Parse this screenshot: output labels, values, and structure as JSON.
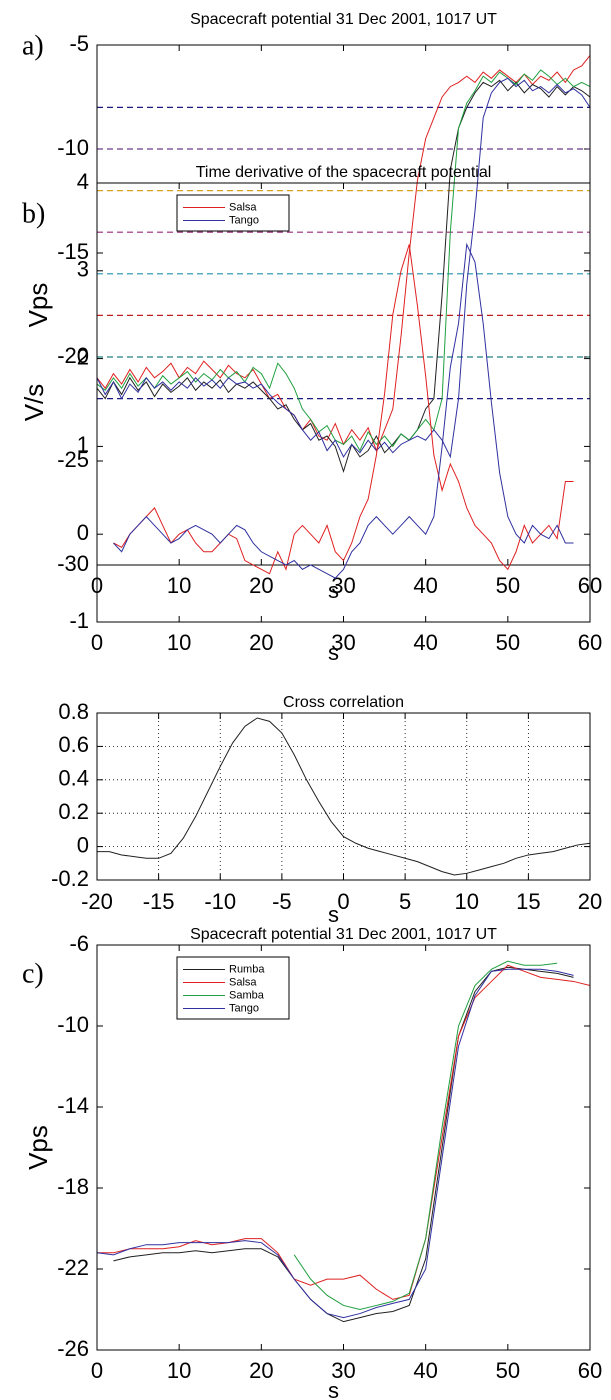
{
  "chart_data": [
    {
      "type": "line",
      "panel_label": "a)",
      "title": "Spacecraft potential 31 Dec 2001, 1017 UT",
      "xlabel": "s",
      "ylabel": "Vps",
      "xlim": [
        0,
        60
      ],
      "ylim": [
        -30,
        -5
      ],
      "xticks": [
        0,
        10,
        20,
        30,
        40,
        50,
        60
      ],
      "yticks": [
        -30,
        -25,
        -20,
        -15,
        -10,
        -5
      ],
      "grid": false,
      "x": [
        0,
        1,
        2,
        3,
        4,
        5,
        6,
        7,
        8,
        9,
        10,
        11,
        12,
        13,
        14,
        15,
        16,
        17,
        18,
        19,
        20,
        21,
        22,
        23,
        24,
        25,
        26,
        27,
        28,
        29,
        30,
        31,
        32,
        33,
        34,
        35,
        36,
        37,
        38,
        39,
        40,
        41,
        42,
        43,
        44,
        45,
        46,
        47,
        48,
        49,
        50,
        51,
        52,
        53,
        54,
        55,
        56,
        57,
        58,
        59,
        60
      ],
      "hlines": [
        {
          "value": -8,
          "color": "#1a1a80"
        },
        {
          "value": -10,
          "color": "#6a3a8a"
        },
        {
          "value": -12,
          "color": "#d4a020"
        },
        {
          "value": -14,
          "color": "#9a2a7a"
        },
        {
          "value": -16,
          "color": "#2090b0"
        },
        {
          "value": -18,
          "color": "#c02020"
        },
        {
          "value": -20,
          "color": "#208080"
        },
        {
          "value": -22,
          "color": "#1a1a80"
        }
      ],
      "series": [
        {
          "color": "#e02020",
          "values": [
            -21,
            -21.5,
            -20.8,
            -21.3,
            -20.6,
            -21.2,
            -20.5,
            -21,
            -20.7,
            -20.3,
            -21,
            -20.5,
            -20.8,
            -20.2,
            -20.6,
            -21,
            -20.4,
            -20.8,
            -21,
            -20.6,
            -21.3,
            -22,
            -21.8,
            -22.5,
            -22.8,
            -23.5,
            -23,
            -23.8,
            -24,
            -23.2,
            -24.2,
            -23.5,
            -24,
            -23.4,
            -24.5,
            -23.5,
            -22.5,
            -19,
            -15,
            -11.5,
            -9.5,
            -8.5,
            -7.5,
            -7,
            -6.8,
            -6.5,
            -6.8,
            -6.3,
            -6.6,
            -6.2,
            -6.5,
            -6.8,
            -6.4,
            -6.9,
            -6.5,
            -6.7,
            -6.3,
            -6.8,
            -6.2,
            -6,
            -5.5
          ]
        },
        {
          "color": "#202020",
          "values": [
            -21.5,
            -22,
            -21.2,
            -21.8,
            -21,
            -21.6,
            -21.2,
            -21.9,
            -21.3,
            -21.7,
            -21.4,
            -21,
            -21.6,
            -21.2,
            -21.5,
            -21.1,
            -21.7,
            -21.3,
            -21.5,
            -21.2,
            -21.6,
            -22,
            -22.5,
            -22.3,
            -23,
            -23.5,
            -23.2,
            -24,
            -23.8,
            -24.3,
            -25.5,
            -24.2,
            -24.8,
            -24.5,
            -23.8,
            -24.6,
            -24.2,
            -23.7,
            -24,
            -23.5,
            -22.5,
            -22,
            -17,
            -11,
            -9,
            -8,
            -7.3,
            -6.8,
            -7,
            -6.7,
            -7.2,
            -6.8,
            -7.3,
            -6.9,
            -7.1,
            -7.5,
            -7,
            -7.4,
            -7,
            -7.2,
            -7.5
          ]
        },
        {
          "color": "#20a040",
          "values": [
            -21.3,
            -21.6,
            -21,
            -21.5,
            -20.8,
            -21.4,
            -21,
            -21.5,
            -20.9,
            -21.3,
            -21,
            -20.7,
            -21.2,
            -20.8,
            -21.1,
            -20.6,
            -21,
            -20.7,
            -21.2,
            -20.5,
            -20.8,
            -21.5,
            -20.3,
            -20.8,
            -21.5,
            -22.5,
            -23,
            -23.6,
            -23.3,
            -24,
            -24.2,
            -23.8,
            -24.5,
            -23.6,
            -24.2,
            -23.8,
            -24.3,
            -23.7,
            -24,
            -23.5,
            -23,
            -23.5,
            -22,
            -14,
            -9,
            -7.8,
            -7.2,
            -6.5,
            -6.8,
            -6.3,
            -6.6,
            -6.9,
            -6.4,
            -6.7,
            -6.2,
            -6.5,
            -6.9,
            -6.6,
            -7,
            -6.8,
            -7
          ]
        },
        {
          "color": "#3030a0",
          "values": [
            -21,
            -21.8,
            -21.2,
            -22,
            -21.3,
            -21.7,
            -21,
            -21.5,
            -21.2,
            -21.6,
            -21.2,
            -21.5,
            -21,
            -21.4,
            -21.1,
            -21.5,
            -21,
            -21.3,
            -21.2,
            -21.5,
            -21.3,
            -21.8,
            -22.2,
            -22.5,
            -22.8,
            -23.5,
            -24,
            -23.6,
            -24.5,
            -24,
            -24.8,
            -24.2,
            -24.6,
            -24,
            -24.5,
            -24.1,
            -24.6,
            -24.2,
            -24,
            -23.8,
            -24,
            -23.5,
            -24,
            -24.8,
            -22,
            -16.5,
            -13,
            -8.5,
            -7.3,
            -6.8,
            -6.6,
            -7,
            -6.7,
            -7.2,
            -7,
            -7.3,
            -6.9,
            -7.3,
            -7.1,
            -7.4,
            -8
          ]
        }
      ]
    },
    {
      "type": "line",
      "panel_label": "b)",
      "title": "Time derivative of the spacecraft potential",
      "xlabel": "s",
      "ylabel": "V/s",
      "xlim": [
        0,
        60
      ],
      "ylim": [
        -1,
        4
      ],
      "xticks": [
        0,
        10,
        20,
        30,
        40,
        50,
        60
      ],
      "yticks": [
        -1,
        0,
        1,
        2,
        3,
        4
      ],
      "grid": false,
      "legend": "upper left",
      "x": [
        2,
        3,
        4,
        5,
        6,
        7,
        8,
        9,
        10,
        11,
        12,
        13,
        14,
        15,
        16,
        17,
        18,
        19,
        20,
        21,
        22,
        23,
        24,
        25,
        26,
        27,
        28,
        29,
        30,
        31,
        32,
        33,
        34,
        35,
        36,
        37,
        38,
        39,
        40,
        41,
        42,
        43,
        44,
        45,
        46,
        47,
        48,
        49,
        50,
        51,
        52,
        53,
        54,
        55,
        56,
        57,
        58
      ],
      "series": [
        {
          "name": "Salsa",
          "color": "#e02020",
          "values": [
            -0.1,
            -0.15,
            0,
            0.1,
            0.2,
            0.3,
            0.1,
            -0.1,
            0,
            0.05,
            -0.1,
            -0.2,
            -0.2,
            -0.1,
            0,
            -0.05,
            -0.3,
            -0.35,
            -0.4,
            -0.45,
            -0.2,
            -0.4,
            0,
            0.1,
            0,
            -0.1,
            0.1,
            -0.2,
            -0.3,
            -0.1,
            0.2,
            0.4,
            0.9,
            1.6,
            2.5,
            3.0,
            3.3,
            2.6,
            1.8,
            0.9,
            0.5,
            0.8,
            0.6,
            0.3,
            0.1,
            0,
            -0.1,
            -0.3,
            -0.4,
            -0.2,
            0.1,
            -0.1,
            0,
            0.1,
            -0.05,
            0.6,
            0.6
          ]
        },
        {
          "name": "Tango",
          "color": "#3030a0",
          "values": [
            -0.1,
            -0.2,
            0,
            0.1,
            0.2,
            0.1,
            0,
            -0.1,
            -0.05,
            0.05,
            0.1,
            0.05,
            0,
            -0.1,
            0,
            0.1,
            0.05,
            -0.1,
            -0.2,
            -0.25,
            -0.3,
            -0.35,
            -0.3,
            -0.4,
            -0.35,
            -0.4,
            -0.45,
            -0.5,
            -0.4,
            -0.2,
            -0.1,
            0.1,
            0.2,
            0.1,
            0,
            0.1,
            0.2,
            0.1,
            0,
            0.2,
            1.0,
            1.9,
            2.4,
            3.3,
            3.1,
            2.4,
            1.5,
            0.7,
            0.2,
            0,
            -0.1,
            0.1,
            0,
            -0.05,
            0.1,
            -0.1,
            -0.1
          ]
        }
      ]
    },
    {
      "type": "line",
      "title": "Cross correlation",
      "xlabel": "s",
      "xlim": [
        -20,
        20
      ],
      "ylim": [
        -0.2,
        0.8
      ],
      "xticks": [
        -20,
        -15,
        -10,
        -5,
        0,
        5,
        10,
        15,
        20
      ],
      "yticks": [
        -0.2,
        0,
        0.2,
        0.4,
        0.6,
        0.8
      ],
      "grid": true,
      "x": [
        -20,
        -19,
        -18,
        -17,
        -16,
        -15,
        -14,
        -13,
        -12,
        -11,
        -10,
        -9,
        -8,
        -7,
        -6,
        -5,
        -4,
        -3,
        -2,
        -1,
        0,
        1,
        2,
        3,
        4,
        5,
        6,
        7,
        8,
        9,
        10,
        11,
        12,
        13,
        14,
        15,
        16,
        17,
        18,
        19,
        20
      ],
      "series": [
        {
          "color": "#202020",
          "values": [
            -0.03,
            -0.03,
            -0.05,
            -0.06,
            -0.07,
            -0.07,
            -0.04,
            0.05,
            0.18,
            0.33,
            0.48,
            0.62,
            0.72,
            0.77,
            0.75,
            0.68,
            0.55,
            0.4,
            0.27,
            0.15,
            0.06,
            0.02,
            -0.01,
            -0.03,
            -0.05,
            -0.07,
            -0.09,
            -0.12,
            -0.15,
            -0.17,
            -0.16,
            -0.14,
            -0.12,
            -0.1,
            -0.07,
            -0.05,
            -0.04,
            -0.03,
            -0.01,
            0.01,
            0.02
          ]
        }
      ]
    },
    {
      "type": "line",
      "panel_label": "c)",
      "title": "Spacecraft potential 31 Dec 2001, 1017 UT",
      "xlabel": "s",
      "ylabel": "Vps",
      "xlim": [
        0,
        60
      ],
      "ylim": [
        -26,
        -6
      ],
      "xticks": [
        0,
        10,
        20,
        30,
        40,
        50,
        60
      ],
      "yticks": [
        -26,
        -22,
        -18,
        -14,
        -10,
        -6
      ],
      "grid": false,
      "legend": "upper left",
      "x": [
        0,
        2,
        4,
        6,
        8,
        10,
        12,
        14,
        16,
        18,
        20,
        22,
        24,
        26,
        28,
        30,
        32,
        34,
        36,
        38,
        40,
        42,
        44,
        46,
        48,
        50,
        52,
        54,
        56,
        58,
        60
      ],
      "series": [
        {
          "name": "Rumba",
          "color": "#202020",
          "values": [
            null,
            -21.6,
            -21.4,
            -21.3,
            -21.2,
            -21.2,
            -21.1,
            -21.2,
            -21.1,
            -21.0,
            -21.0,
            -21.4,
            -22.5,
            -23.5,
            -24.2,
            -24.6,
            -24.4,
            -24.2,
            -24.1,
            -23.8,
            -21.5,
            -16,
            -10.5,
            -8.3,
            -7.3,
            -7.1,
            -7.2,
            -7.3,
            -7.4,
            -7.6,
            null
          ]
        },
        {
          "name": "Salsa",
          "color": "#e02020",
          "values": [
            -21.2,
            -21.2,
            -21.0,
            -21.0,
            -21.0,
            -20.9,
            -20.6,
            -20.8,
            -20.7,
            -20.5,
            -20.5,
            -21.2,
            -22.5,
            -22.8,
            -22.5,
            -22.5,
            -22.3,
            -23,
            -23.5,
            -23.3,
            -20.5,
            -15.5,
            -10.5,
            -8.6,
            -7.8,
            -7.0,
            -7.3,
            -7.6,
            -7.7,
            -7.8,
            -8.0
          ]
        },
        {
          "name": "Samba",
          "color": "#20a040",
          "values": [
            null,
            null,
            null,
            null,
            null,
            null,
            null,
            null,
            null,
            null,
            null,
            null,
            -21.3,
            -22.5,
            -23.3,
            -23.8,
            -24.0,
            -23.8,
            -23.6,
            -23.2,
            -20.5,
            -15,
            -10,
            -8,
            -7.2,
            -6.8,
            -7.0,
            -7.0,
            -6.9,
            null,
            null
          ]
        },
        {
          "name": "Tango",
          "color": "#3030a0",
          "values": [
            -21.2,
            -21.3,
            -21.0,
            -20.8,
            -20.8,
            -20.7,
            -20.7,
            -20.7,
            -20.7,
            -20.6,
            -20.7,
            -21.3,
            -22.5,
            -23.5,
            -24.2,
            -24.4,
            -24.2,
            -23.9,
            -23.7,
            -23.5,
            -22,
            -16.5,
            -11,
            -8.5,
            -7.3,
            -7.2,
            -7.2,
            -7.2,
            -7.3,
            -7.5,
            null
          ]
        }
      ]
    }
  ]
}
